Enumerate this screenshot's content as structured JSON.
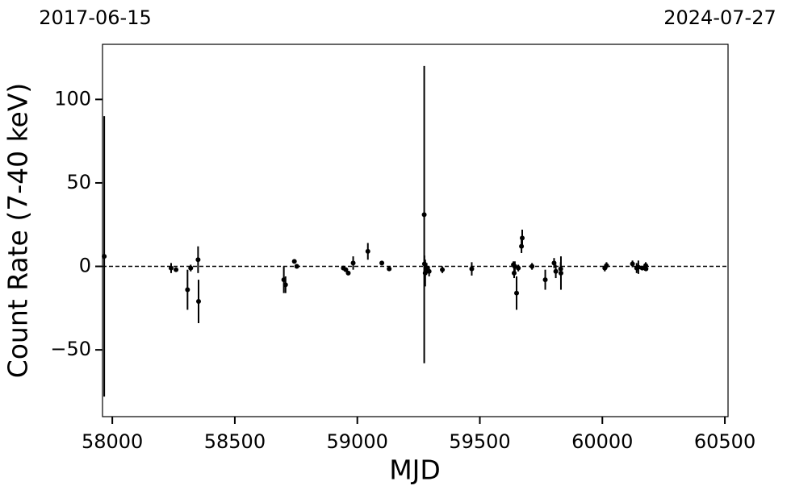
{
  "chart_data": {
    "type": "scatter",
    "top_left_label": "2017-06-15",
    "top_right_label": "2024-07-27",
    "x_label": "MJD",
    "y_label": "Count Rate (7-40 keV)",
    "color": "#000000",
    "reference_line": 0,
    "xlim": [
      57960,
      60513
    ],
    "ylim": [
      -90,
      133
    ],
    "xticks": [
      58000,
      58500,
      59000,
      59500,
      60000,
      60500
    ],
    "yticks": [
      {
        "value": -50,
        "label": "−50"
      },
      0,
      50,
      100
    ],
    "series": [
      {
        "x": [
          57967,
          58240,
          58260,
          58307,
          58320,
          58350,
          58352,
          58700,
          58707,
          58743,
          58753,
          58943,
          58953,
          58963,
          58983,
          59043,
          59100,
          59130,
          59273,
          59274,
          59277,
          59283,
          59293,
          59347,
          59467,
          59637,
          59640,
          59643,
          59650,
          59657,
          59670,
          59673,
          59713,
          59767,
          59803,
          59810,
          59830,
          59831,
          60010,
          60017,
          60123,
          60140,
          60147,
          60163,
          60177,
          60178
        ],
        "values": [
          6,
          -1,
          -2,
          -14,
          -1,
          4,
          -21,
          -8,
          -11,
          3,
          0,
          -1,
          -2,
          -4,
          2,
          9,
          2,
          -1.5,
          31,
          1.5,
          -4,
          -1,
          -3,
          -2,
          -1.5,
          1,
          -4,
          0,
          -16,
          -1,
          12,
          17,
          0,
          -8,
          2,
          -3,
          -1.5,
          -4,
          -1,
          0.5,
          1.5,
          -1,
          -0.5,
          -1,
          0.5,
          -1.5
        ],
        "errors": [
          84,
          3,
          1,
          12,
          2,
          8,
          13,
          8,
          5,
          1,
          1,
          1,
          1,
          1,
          4,
          5,
          1,
          1,
          89,
          5,
          8,
          3,
          3,
          2,
          4,
          2,
          3,
          3,
          10,
          2,
          4,
          5,
          2,
          6,
          3,
          4,
          4,
          10,
          2,
          2,
          2,
          3,
          4,
          1,
          2,
          1
        ]
      }
    ]
  }
}
